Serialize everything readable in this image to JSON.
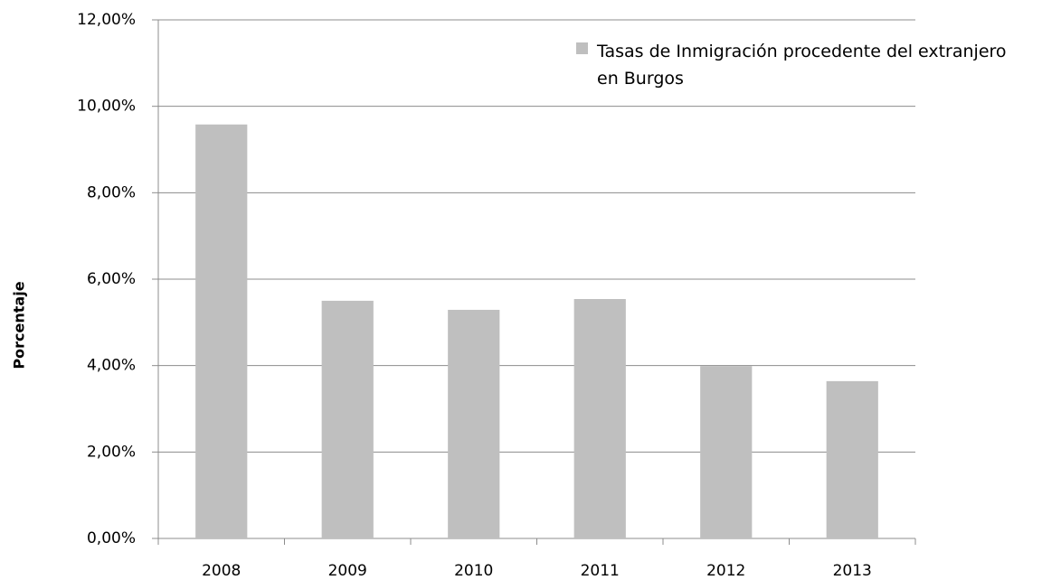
{
  "chart_data": {
    "type": "bar",
    "y_label": "Porcentaje",
    "categories": [
      "2008",
      "2009",
      "2010",
      "2011",
      "2012",
      "2013"
    ],
    "series": [
      {
        "name": "Tasas de Inmigración  procedente del extranjero en Burgos",
        "color": "#bfbfbf",
        "values": [
          9.58,
          5.5,
          5.29,
          5.54,
          3.99,
          3.64
        ]
      }
    ],
    "ylim": [
      0,
      12
    ],
    "yticks": [
      {
        "value": 0,
        "label": "0,00%"
      },
      {
        "value": 2,
        "label": "2,00%"
      },
      {
        "value": 4,
        "label": "4,00%"
      },
      {
        "value": 6,
        "label": "6,00%"
      },
      {
        "value": 8,
        "label": "8,00%"
      },
      {
        "value": 10,
        "label": "10,00%"
      },
      {
        "value": 12,
        "label": "12,00%"
      }
    ],
    "grid": true,
    "legend": "top-right"
  }
}
